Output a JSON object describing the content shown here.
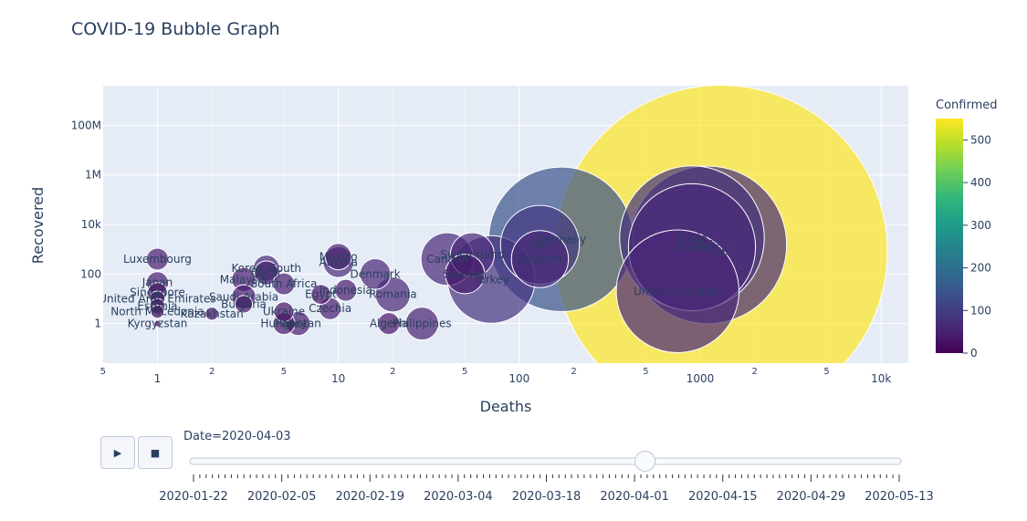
{
  "chart_data": {
    "type": "scatter",
    "title": "COVID-19 Bubble Graph",
    "xlabel": "Deaths",
    "ylabel": "Recovered",
    "xscale": "log",
    "yscale": "log",
    "xlim_log10": [
      -0.3,
      4.15
    ],
    "ylim_log10": [
      -1.6,
      9.6
    ],
    "x_major_ticks": [
      {
        "value": 1,
        "label": "1"
      },
      {
        "value": 10,
        "label": "10"
      },
      {
        "value": 100,
        "label": "100"
      },
      {
        "value": 1000,
        "label": "1000"
      },
      {
        "value": 10000,
        "label": "10k"
      }
    ],
    "x_minor_ticks": [
      {
        "value": 0.5,
        "label": "5"
      },
      {
        "value": 2,
        "label": "2"
      },
      {
        "value": 5,
        "label": "5"
      },
      {
        "value": 20,
        "label": "2"
      },
      {
        "value": 50,
        "label": "5"
      },
      {
        "value": 200,
        "label": "2"
      },
      {
        "value": 500,
        "label": "5"
      },
      {
        "value": 2000,
        "label": "2"
      },
      {
        "value": 5000,
        "label": "5"
      }
    ],
    "y_ticks": [
      {
        "value": 1,
        "label": "1"
      },
      {
        "value": 100,
        "label": "100"
      },
      {
        "value": 10000,
        "label": "10k"
      },
      {
        "value": 1000000,
        "label": "1M"
      },
      {
        "value": 100000000,
        "label": "100M"
      }
    ],
    "colorbar": {
      "title": "Confirmed",
      "min": 0,
      "max": 550,
      "ticks": [
        0,
        100,
        200,
        300,
        400,
        500
      ],
      "colors": [
        "#440154",
        "#482878",
        "#3e4989",
        "#31688e",
        "#26828e",
        "#1f9e89",
        "#35b779",
        "#6ece58",
        "#b5de2b",
        "#fde725"
      ]
    },
    "points": [
      {
        "label": "Luxembourg",
        "deaths": 1,
        "recovered": 400,
        "size": 1.0,
        "confirmed": 40
      },
      {
        "label": "Japan",
        "deaths": 1,
        "recovered": 45,
        "size": 1.0,
        "confirmed": 40
      },
      {
        "label": "Singapore",
        "deaths": 1,
        "recovered": 18,
        "size": 0.9,
        "confirmed": 30
      },
      {
        "label": "United Arab Emirates",
        "deaths": 1,
        "recovered": 10,
        "size": 0.7,
        "confirmed": 30
      },
      {
        "label": "Estonia",
        "deaths": 1,
        "recovered": 5,
        "size": 0.7,
        "confirmed": 30
      },
      {
        "label": "North Macedonia",
        "deaths": 1,
        "recovered": 3,
        "size": 0.6,
        "confirmed": 20
      },
      {
        "label": "Kyrgyzstan",
        "deaths": 1,
        "recovered": 1,
        "size": 0.3,
        "confirmed": 10
      },
      {
        "label": "Kazakhstan",
        "deaths": 2,
        "recovered": 2.5,
        "size": 0.6,
        "confirmed": 20
      },
      {
        "label": "Malaysia",
        "deaths": 3,
        "recovered": 60,
        "size": 1.1,
        "confirmed": 40
      },
      {
        "label": "Saudi Arabia",
        "deaths": 3,
        "recovered": 12,
        "size": 1.1,
        "confirmed": 40
      },
      {
        "label": "Bulgaria",
        "deaths": 3,
        "recovered": 6,
        "size": 0.8,
        "confirmed": 30
      },
      {
        "label": "Korea, South",
        "deaths": 4,
        "recovered": 170,
        "size": 1.2,
        "confirmed": 60
      },
      {
        "label": "Qatar",
        "deaths": 4,
        "recovered": 110,
        "size": 1.1,
        "confirmed": 50
      },
      {
        "label": "South Africa",
        "deaths": 5,
        "recovered": 40,
        "size": 1.0,
        "confirmed": 40
      },
      {
        "label": "Ukraine",
        "deaths": 5,
        "recovered": 3,
        "size": 0.9,
        "confirmed": 30
      },
      {
        "label": "Hungary",
        "deaths": 5,
        "recovered": 1,
        "size": 1.0,
        "confirmed": 30
      },
      {
        "label": "Pakistan",
        "deaths": 6,
        "recovered": 1,
        "size": 1.1,
        "confirmed": 40
      },
      {
        "label": "Mexico",
        "deaths": 10,
        "recovered": 500,
        "size": 1.2,
        "confirmed": 50
      },
      {
        "label": "Austria",
        "deaths": 10,
        "recovered": 300,
        "size": 1.4,
        "confirmed": 60
      },
      {
        "label": "Indonesia",
        "deaths": 11,
        "recovered": 22,
        "size": 1.0,
        "confirmed": 40
      },
      {
        "label": "Egypt",
        "deaths": 8,
        "recovered": 15,
        "size": 0.9,
        "confirmed": 30
      },
      {
        "label": "Czechia",
        "deaths": 9,
        "recovered": 4,
        "size": 1.0,
        "confirmed": 40
      },
      {
        "label": "Denmark",
        "deaths": 16,
        "recovered": 100,
        "size": 1.4,
        "confirmed": 60
      },
      {
        "label": "Romania",
        "deaths": 20,
        "recovered": 15,
        "size": 1.6,
        "confirmed": 60
      },
      {
        "label": "Algeria",
        "deaths": 19,
        "recovered": 1,
        "size": 1.0,
        "confirmed": 30
      },
      {
        "label": "Philippines",
        "deaths": 29,
        "recovered": 1,
        "size": 1.5,
        "confirmed": 50
      },
      {
        "label": "Canada",
        "deaths": 40,
        "recovered": 400,
        "size": 2.4,
        "confirmed": 60
      },
      {
        "label": "Switzerland",
        "deaths": 55,
        "recovered": 600,
        "size": 2.0,
        "confirmed": 60
      },
      {
        "label": "Sweden",
        "deaths": 50,
        "recovered": 100,
        "size": 1.8,
        "confirmed": 40
      },
      {
        "label": "Turkey",
        "deaths": 70,
        "recovered": 60,
        "size": 4.0,
        "confirmed": 80
      },
      {
        "label": "Belgium",
        "deaths": 130,
        "recovered": 400,
        "size": 2.6,
        "confirmed": 60
      },
      {
        "label": "Iran",
        "deaths": 130,
        "recovered": 1500,
        "size": 3.6,
        "confirmed": 90
      },
      {
        "label": "Germany",
        "deaths": 170,
        "recovered": 2500,
        "size": 6.6,
        "confirmed": 140
      },
      {
        "label": "US",
        "deaths": 1300,
        "recovered": 800,
        "size": 15.2,
        "confirmed": 550
      },
      {
        "label": "Italy",
        "deaths": 1100,
        "recovered": 1500,
        "size": 7.2,
        "confirmed": 70
      },
      {
        "label": "Spain",
        "deaths": 900,
        "recovered": 2800,
        "size": 6.6,
        "confirmed": 80
      },
      {
        "label": "France",
        "deaths": 900,
        "recovered": 1200,
        "size": 5.8,
        "confirmed": 65
      },
      {
        "label": "United Kingdom",
        "deaths": 750,
        "recovered": 20,
        "size": 5.6,
        "confirmed": 60
      }
    ]
  },
  "animation": {
    "current_label": "Date=2020-04-03",
    "play_icon": "play-icon",
    "stop_icon": "stop-icon",
    "play_glyph": "▶",
    "stop_glyph": "■",
    "slider_position": 0.64,
    "tick_count": 113,
    "date_labels": [
      "2020-01-22",
      "2020-02-05",
      "2020-02-19",
      "2020-03-04",
      "2020-03-18",
      "2020-04-01",
      "2020-04-15",
      "2020-04-29",
      "2020-05-13"
    ]
  }
}
